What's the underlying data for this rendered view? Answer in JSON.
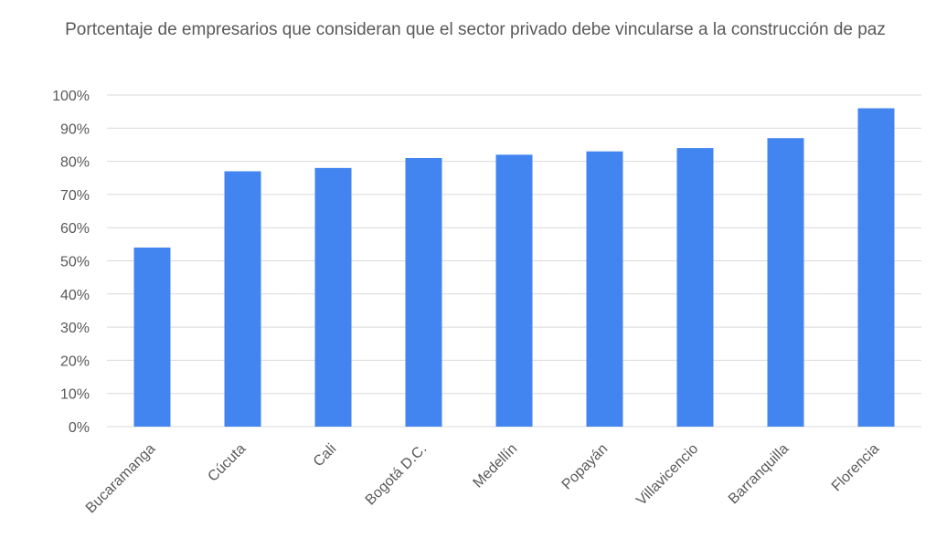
{
  "chart_data": {
    "type": "bar",
    "title": "Portcentaje de empresarios que consideran que el sector privado debe vincularse a la construcción de paz",
    "xlabel": "",
    "ylabel": "",
    "categories": [
      "Bucaramanga",
      "Cúcuta",
      "Cali",
      "Bogotá D.C.",
      "Medellín",
      "Popayán",
      "Villavicencio",
      "Barranquilla",
      "Florencia"
    ],
    "values": [
      54,
      77,
      78,
      81,
      82,
      83,
      84,
      87,
      96
    ],
    "ylim": [
      0,
      100
    ],
    "yticks": [
      "0%",
      "10%",
      "20%",
      "30%",
      "40%",
      "50%",
      "60%",
      "70%",
      "80%",
      "90%",
      "100%"
    ],
    "grid": true,
    "legend": "none",
    "colors": {
      "bar": "#4285F0",
      "grid": "#d9d9d9",
      "text": "#595959"
    }
  }
}
